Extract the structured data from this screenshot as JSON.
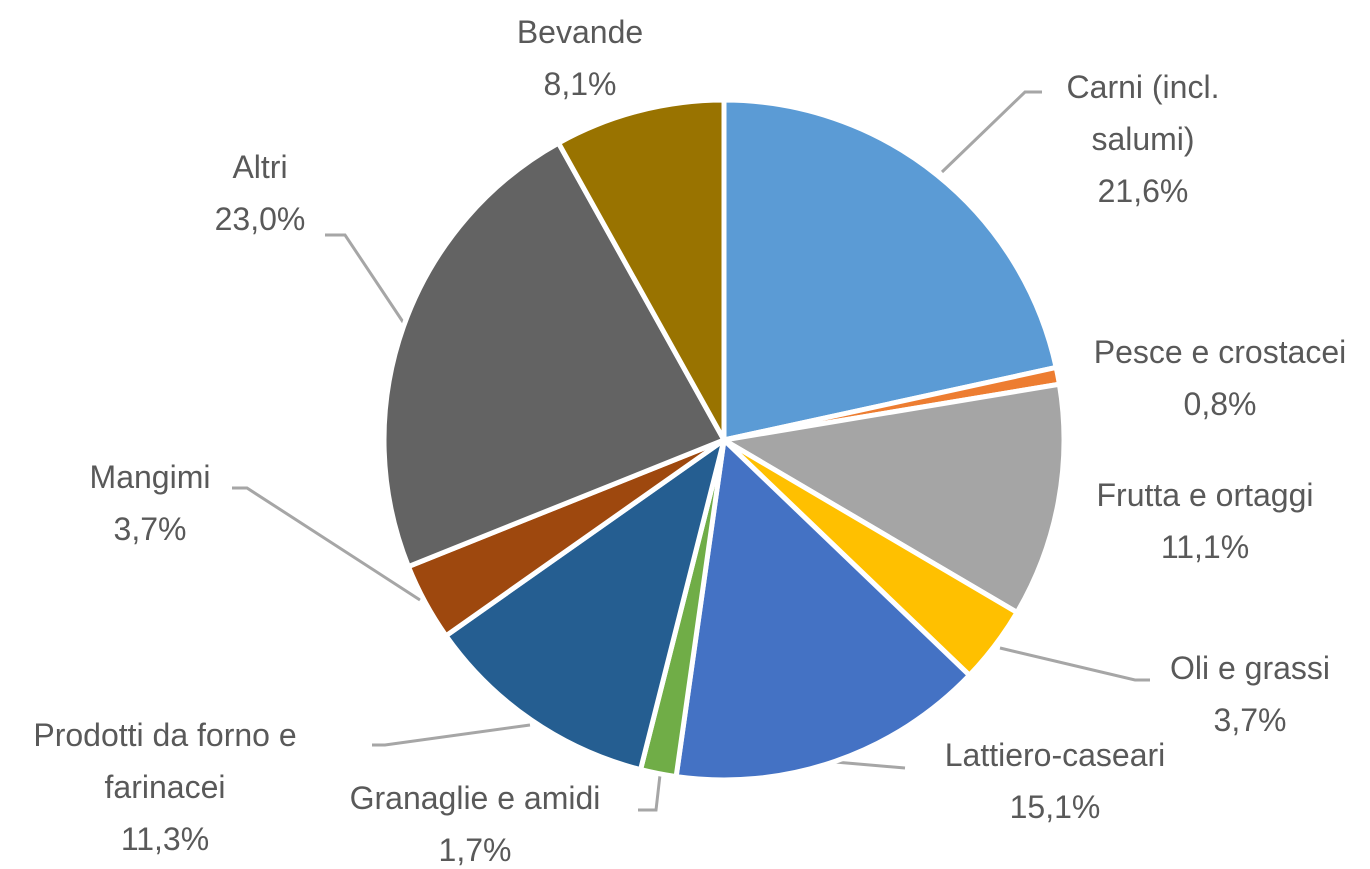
{
  "chart_data": {
    "type": "pie",
    "categories": [
      "Carni (incl. salumi)",
      "Pesce e crostacei",
      "Frutta e ortaggi",
      "Oli e grassi",
      "Lattiero-caseari",
      "Granaglie e amidi",
      "Prodotti da forno e farinacei",
      "Mangimi",
      "Altri",
      "Bevande"
    ],
    "values": [
      21.6,
      0.8,
      11.1,
      3.7,
      15.1,
      1.7,
      11.3,
      3.7,
      23.0,
      8.1
    ],
    "value_labels": [
      "21,6%",
      "0,8%",
      "11,1%",
      "3,7%",
      "15,1%",
      "1,7%",
      "11,3%",
      "3,7%",
      "23,0%",
      "8,1%"
    ],
    "colors": [
      "#5b9bd5",
      "#ed7d31",
      "#a5a5a5",
      "#ffc000",
      "#4472c4",
      "#70ad47",
      "#255e91",
      "#9e480e",
      "#636363",
      "#997300"
    ]
  }
}
